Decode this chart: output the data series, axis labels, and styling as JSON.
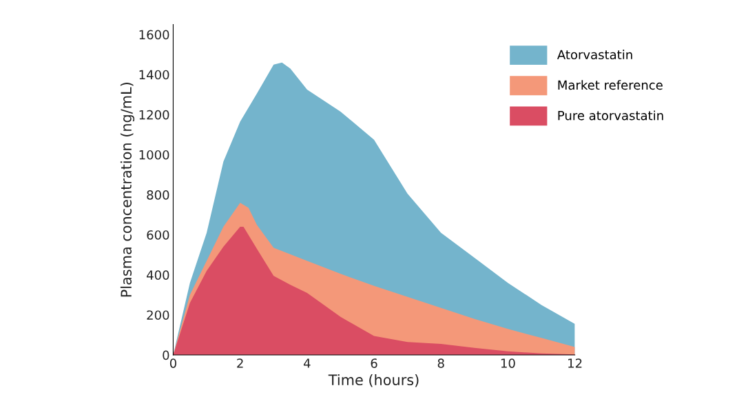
{
  "chart_data": {
    "type": "area",
    "xlabel": "Time (hours)",
    "ylabel": "Plasma concentration (ng/mL)",
    "xlim": [
      0,
      12
    ],
    "xticks": [
      0,
      2,
      4,
      6,
      8,
      10,
      12
    ],
    "ylim": [
      0,
      1650
    ],
    "yticks": [
      0,
      200,
      400,
      600,
      800,
      1000,
      1200,
      1400,
      1600
    ],
    "legend": "top right",
    "grid": false,
    "series": [
      {
        "name": "Atorvastatin",
        "color": "#74b4cc",
        "x": [
          0,
          0.5,
          1,
          1.5,
          2,
          2.5,
          3,
          3.25,
          3.5,
          4,
          5,
          6,
          7,
          8,
          9,
          10,
          11,
          12
        ],
        "values": [
          0,
          360,
          610,
          965,
          1165,
          1305,
          1450,
          1460,
          1430,
          1325,
          1215,
          1075,
          805,
          610,
          485,
          360,
          250,
          155
        ]
      },
      {
        "name": "Market reference",
        "color": "#f49879",
        "x": [
          0,
          0.5,
          1,
          1.5,
          2,
          2.25,
          2.5,
          3,
          4,
          5,
          6,
          7,
          8,
          9,
          10,
          11,
          12
        ],
        "values": [
          0,
          300,
          470,
          640,
          760,
          735,
          650,
          535,
          470,
          405,
          345,
          290,
          235,
          180,
          130,
          85,
          40
        ]
      },
      {
        "name": "Pure atorvastatin",
        "color": "#da4d63",
        "x": [
          0,
          0.5,
          1,
          1.5,
          2,
          2.1,
          2.5,
          3,
          3.5,
          4,
          5,
          6,
          7,
          8,
          9,
          10,
          11,
          12
        ],
        "values": [
          0,
          260,
          420,
          540,
          640,
          640,
          530,
          395,
          350,
          310,
          190,
          95,
          65,
          55,
          35,
          18,
          8,
          3
        ]
      }
    ]
  }
}
